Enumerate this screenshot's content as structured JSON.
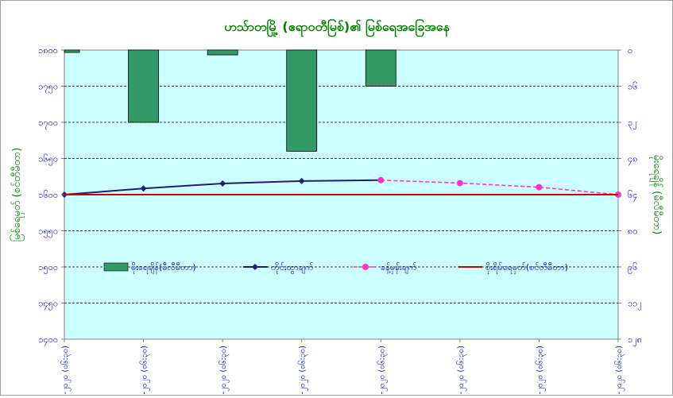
{
  "chart_data": {
    "type": "bar+line",
    "title": "ဟသ်ာတမြို့ (ဧရာဝတီမြစ်)၏ မြစ်ရေအခြေအနေ",
    "ylabel_left": "မြစ်ရေမှတ် (စင်တီမီတာ)",
    "ylabel_right": "မိုးရေချိန် (မီလီမီတာ)",
    "left_axis": {
      "ylim": [
        1100,
        1800
      ],
      "ticks": [
        "၁၈၀၀",
        "၁၇၅၀",
        "၁၇၀၀",
        "၁၆၅၀",
        "၁၆၀၀",
        "၁၅၅၀",
        "၁၅၀၀",
        "၁၄၅၀",
        "၁၄၀၀"
      ]
    },
    "right_axis": {
      "ylim": [
        0,
        120
      ],
      "inverted": true,
      "ticks": [
        "၀",
        "၁၆",
        "၃၂",
        "၄၈",
        "၆၄",
        "၈၀",
        "၉၆",
        "၁၁၂",
        "၁၂၈"
      ]
    },
    "categories": [
      "၂၉-၂-၂၀၂၀ (၀၆:၃၀)",
      "၁-၃-၂၀၂၀ (၀၆:၃၀)",
      "၂-၃-၂၀၂၀ (၀၆:၃၀)",
      "၃-၃-၂၀၂၀ (၀၆:၃၀)",
      "၄-၃-၂၀၂၀ (၀၆:၃၀)",
      "၅-၃-၂၀၂၀ (၀၆:၃၀)",
      "၆-၃-၂၀၂၀ (၀၆:၃၀)",
      "၇-၃-၂၀၂၀ (၀၆:၃၀)"
    ],
    "series": [
      {
        "name": "မိုးရေချိန်(မီလီမီတာ)",
        "type": "bar",
        "axis": "right",
        "color": "#339966",
        "values": [
          1,
          30,
          2,
          42,
          15,
          null,
          null,
          null
        ]
      },
      {
        "name": "တိုင်းထွာချက်",
        "type": "line",
        "axis": "left",
        "color": "#1f1f7a",
        "marker": "diamond",
        "values": [
          1450,
          1465,
          1477,
          1483,
          1485,
          null,
          null,
          null
        ]
      },
      {
        "name": "ခန့်မှန်းချက်",
        "type": "line",
        "axis": "left",
        "color": "#ff33cc",
        "dashed": true,
        "marker": "circle",
        "values": [
          null,
          null,
          null,
          null,
          1485,
          1478,
          1468,
          1450
        ]
      },
      {
        "name": "စိုးရိမ်ရေမှတ်(စင်တီမီတာ)",
        "type": "line",
        "axis": "left",
        "color": "#cc0000",
        "values": [
          1450,
          1450,
          1450,
          1450,
          1450,
          1450,
          1450,
          1450
        ]
      }
    ],
    "grid": true,
    "legend_position": "inside-middle",
    "colors": {
      "plot_bg": "#ccffff",
      "title": "#008000",
      "axis_label": "#008000",
      "ticks": "#0000cc"
    }
  }
}
